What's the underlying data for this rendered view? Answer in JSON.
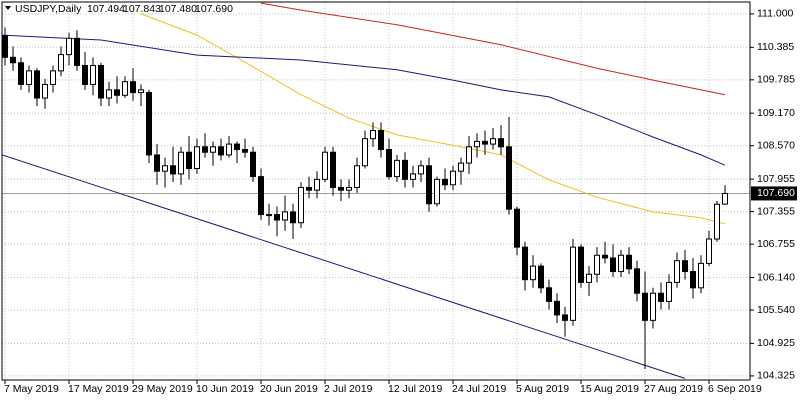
{
  "chart_data": {
    "type": "candlestick",
    "header": "USDJPY,Daily",
    "header_values": [
      "107.494",
      "107.843",
      "107.480",
      "107.690"
    ],
    "categories": [
      "7 May 2019",
      null,
      null,
      null,
      null,
      null,
      null,
      null,
      "17 May 2019",
      null,
      null,
      null,
      null,
      null,
      null,
      null,
      "29 May 2019",
      null,
      null,
      null,
      null,
      null,
      null,
      null,
      "10 Jun 2019",
      null,
      null,
      null,
      null,
      null,
      null,
      null,
      "20 Jun 2019",
      null,
      null,
      null,
      null,
      null,
      null,
      null,
      "2 Jul 2019",
      null,
      null,
      null,
      null,
      null,
      null,
      null,
      "12 Jul 2019",
      null,
      null,
      null,
      null,
      null,
      null,
      null,
      "24 Jul 2019",
      null,
      null,
      null,
      null,
      null,
      null,
      null,
      "5 Aug 2019",
      null,
      null,
      null,
      null,
      null,
      null,
      null,
      "15 Aug 2019",
      null,
      null,
      null,
      null,
      null,
      null,
      null,
      "27 Aug 2019",
      null,
      null,
      null,
      null,
      null,
      null,
      null,
      "6 Sep 2019",
      null,
      null
    ],
    "ohlc": {
      "open": [
        110.6,
        110.2,
        110.1,
        109.7,
        109.95,
        109.45,
        109.7,
        109.95,
        110.25,
        110.55,
        110.05,
        109.7,
        110.05,
        109.45,
        109.6,
        109.5,
        109.75,
        109.55,
        109.55,
        108.4,
        108.1,
        108.2,
        108.05,
        108.45,
        108.15,
        108.55,
        108.45,
        108.55,
        108.4,
        108.6,
        108.5,
        108.45,
        108.0,
        107.3,
        107.3,
        107.2,
        107.35,
        107.15,
        107.8,
        107.75,
        107.95,
        108.45,
        107.8,
        107.75,
        107.8,
        108.2,
        108.7,
        108.85,
        108.5,
        108.0,
        108.3,
        107.95,
        108.05,
        108.2,
        107.5,
        107.95,
        107.85,
        108.1,
        108.25,
        108.55,
        108.65,
        108.6,
        108.7,
        108.55,
        107.4,
        106.7,
        106.1,
        106.35,
        105.95,
        105.7,
        105.45,
        105.35,
        106.7,
        106.05,
        106.2,
        106.55,
        106.5,
        106.25,
        106.55,
        106.3,
        105.85,
        105.35,
        105.85,
        105.7,
        106.05,
        106.45,
        106.25,
        105.95,
        106.4,
        106.85,
        107.494
      ],
      "high": [
        110.75,
        110.4,
        110.2,
        110.05,
        110.0,
        109.8,
        110.05,
        110.4,
        110.65,
        110.7,
        110.3,
        110.2,
        110.1,
        109.75,
        109.85,
        109.85,
        110.0,
        109.7,
        109.6,
        108.6,
        108.35,
        108.55,
        108.55,
        108.75,
        108.7,
        108.8,
        108.65,
        108.7,
        108.75,
        108.65,
        108.7,
        108.55,
        108.15,
        107.5,
        107.45,
        107.65,
        107.5,
        107.9,
        108.0,
        108.1,
        108.55,
        108.55,
        107.95,
        107.95,
        108.35,
        108.85,
        109.0,
        109.0,
        108.7,
        108.4,
        108.45,
        108.2,
        108.3,
        108.35,
        108.0,
        108.15,
        108.2,
        108.35,
        108.75,
        108.8,
        108.85,
        108.9,
        108.95,
        109.1,
        107.45,
        106.8,
        106.55,
        106.4,
        106.1,
        105.85,
        105.6,
        106.85,
        106.75,
        106.35,
        106.7,
        106.8,
        106.75,
        106.65,
        106.7,
        106.45,
        106.25,
        105.95,
        106.05,
        106.2,
        106.6,
        106.65,
        106.5,
        106.55,
        107.0,
        107.55,
        107.843
      ],
      "low": [
        110.05,
        109.95,
        109.6,
        109.55,
        109.3,
        109.25,
        109.55,
        109.85,
        110.05,
        109.95,
        109.6,
        109.5,
        109.3,
        109.3,
        109.35,
        109.45,
        109.4,
        109.3,
        108.25,
        107.85,
        107.8,
        107.9,
        107.85,
        107.95,
        108.05,
        108.35,
        108.2,
        108.3,
        108.35,
        108.25,
        108.35,
        107.9,
        107.2,
        107.1,
        106.9,
        107.0,
        106.85,
        107.05,
        107.6,
        107.6,
        107.9,
        107.65,
        107.55,
        107.6,
        107.7,
        108.15,
        108.55,
        108.35,
        107.95,
        107.9,
        107.8,
        107.8,
        107.9,
        107.35,
        107.45,
        107.75,
        107.75,
        107.85,
        108.05,
        108.35,
        108.4,
        108.5,
        108.4,
        107.3,
        106.55,
        105.9,
        105.95,
        105.85,
        105.55,
        105.3,
        105.05,
        105.25,
        105.95,
        105.8,
        106.05,
        106.4,
        106.15,
        106.15,
        106.2,
        105.7,
        104.45,
        105.2,
        105.55,
        105.55,
        105.95,
        106.1,
        105.75,
        105.85,
        106.35,
        106.8,
        107.48
      ],
      "close": [
        110.2,
        110.1,
        109.7,
        109.95,
        109.45,
        109.7,
        109.95,
        110.25,
        110.55,
        110.05,
        109.7,
        110.05,
        109.45,
        109.6,
        109.5,
        109.75,
        109.55,
        109.6,
        108.4,
        108.1,
        108.2,
        108.05,
        108.45,
        108.15,
        108.55,
        108.45,
        108.55,
        108.4,
        108.6,
        108.5,
        108.45,
        108.0,
        107.3,
        107.3,
        107.2,
        107.35,
        107.15,
        107.8,
        107.75,
        107.95,
        108.45,
        107.8,
        107.75,
        107.8,
        108.2,
        108.7,
        108.85,
        108.5,
        108.0,
        108.3,
        107.95,
        108.05,
        108.2,
        107.5,
        107.95,
        107.85,
        108.1,
        108.25,
        108.55,
        108.65,
        108.6,
        108.7,
        108.55,
        107.4,
        106.7,
        106.1,
        106.35,
        105.95,
        105.7,
        105.45,
        105.35,
        106.7,
        106.05,
        106.2,
        106.55,
        106.5,
        106.25,
        106.55,
        106.3,
        105.85,
        105.35,
        105.85,
        105.7,
        106.05,
        106.45,
        106.25,
        105.95,
        106.4,
        106.85,
        107.49,
        107.69
      ]
    },
    "bull_color": "#ffffff",
    "bear_color": "#000000",
    "lines": [
      {
        "color": "#f0c020",
        "x": [
          17,
          24,
          30,
          37,
          43,
          49,
          56,
          62,
          68,
          74,
          81,
          87,
          90
        ],
        "values": [
          111.0,
          110.61,
          110.11,
          109.51,
          109.08,
          108.77,
          108.58,
          108.4,
          107.94,
          107.62,
          107.35,
          107.24,
          107.13
        ]
      },
      {
        "color": "#1a1a7a",
        "x": [
          -0.375,
          12,
          24,
          37,
          49,
          56,
          62,
          68,
          74,
          81,
          87,
          90
        ],
        "values": [
          110.61,
          110.52,
          110.24,
          110.15,
          109.97,
          109.78,
          109.6,
          109.47,
          109.14,
          108.73,
          108.4,
          108.21
        ]
      },
      {
        "color": "#cc2222",
        "x": [
          32,
          37,
          49,
          62,
          74,
          81,
          87,
          90
        ],
        "values": [
          111.2,
          111.07,
          110.8,
          110.43,
          110.0,
          109.78,
          109.6,
          109.51
        ]
      },
      {
        "color": "#1a1a7a",
        "x": [
          -0.375,
          85
        ],
        "values": [
          108.4,
          104.28
        ]
      }
    ],
    "xlim": [
      -0.375,
      93.125
    ],
    "ylim": [
      104.25,
      111.22
    ],
    "yticks": [
      {
        "value": 111.0,
        "label": "111.000"
      },
      {
        "value": 110.385,
        "label": "110.385"
      },
      {
        "value": 109.785,
        "label": "109.785"
      },
      {
        "value": 109.17,
        "label": "109.170"
      },
      {
        "value": 108.57,
        "label": "108.570"
      },
      {
        "value": 107.955,
        "label": "107.955"
      },
      {
        "value": 107.355,
        "label": "107.355"
      },
      {
        "value": 106.755,
        "label": "106.755"
      },
      {
        "value": 106.14,
        "label": "106.140"
      },
      {
        "value": 105.54,
        "label": "105.540"
      },
      {
        "value": 104.925,
        "label": "104.925"
      },
      {
        "value": 104.325,
        "label": "104.325"
      }
    ],
    "last_price": {
      "value": 107.69,
      "label": "107.690"
    },
    "grid": true
  }
}
